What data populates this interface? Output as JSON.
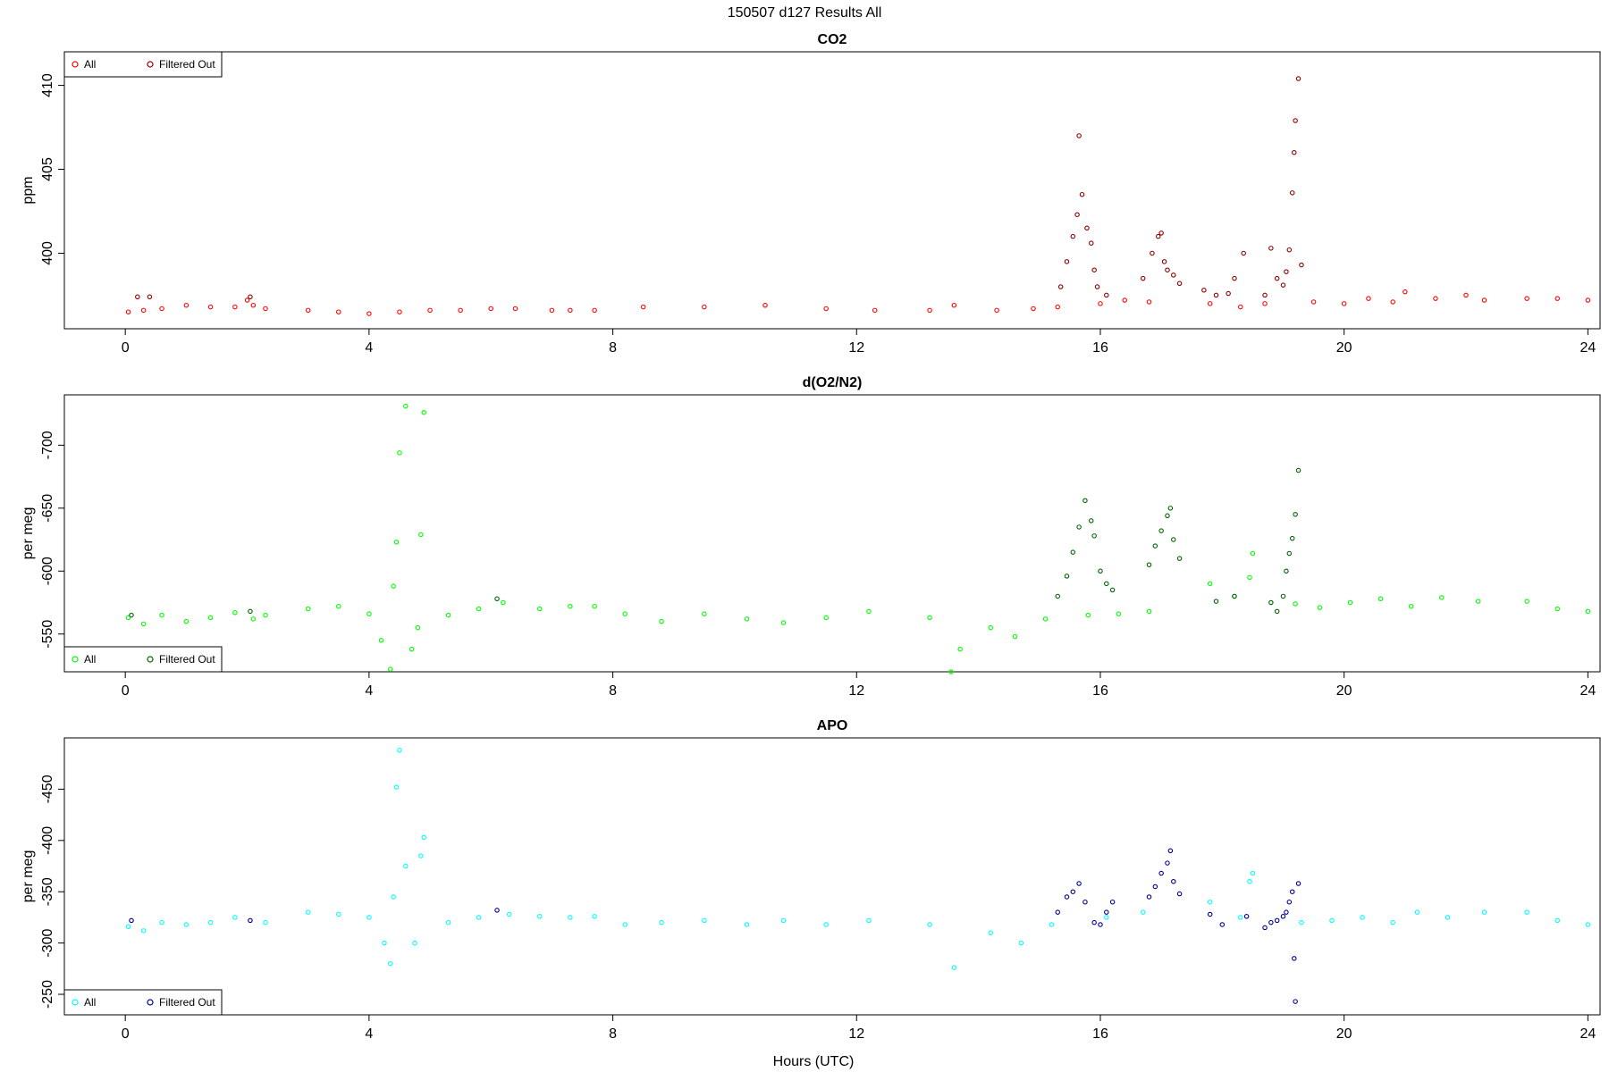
{
  "page_title": "150507   d127   Results All",
  "xlabel": "Hours (UTC)",
  "legend_labels": {
    "all": "All",
    "filtered": "Filtered Out"
  },
  "chart_data": [
    {
      "type": "scatter",
      "title": "CO2",
      "ylabel": "ppm",
      "xlim": [
        -1,
        24.2
      ],
      "ylim": [
        395.5,
        412
      ],
      "y_reversed": true,
      "x_ticks": [
        0,
        4,
        8,
        12,
        16,
        20,
        24
      ],
      "y_ticks": [
        400,
        405,
        410
      ],
      "legend_placement": "top-left",
      "colors": {
        "all": "#ff0000",
        "filtered": "#8b0000"
      },
      "series": [
        {
          "name": "All",
          "x": [
            0.05,
            0.3,
            0.6,
            1.0,
            1.4,
            1.8,
            2.0,
            2.1,
            2.3,
            3.0,
            3.5,
            4.0,
            4.5,
            5.0,
            5.5,
            6.0,
            6.4,
            7.0,
            7.3,
            7.7,
            8.5,
            9.5,
            10.5,
            11.5,
            12.3,
            13.2,
            13.6,
            14.3,
            14.9,
            15.3,
            16.0,
            16.4,
            16.8,
            17.8,
            18.3,
            18.7,
            19.5,
            20.0,
            20.4,
            20.8,
            21.0,
            21.5,
            22.0,
            22.3,
            23.0,
            23.5,
            24.0
          ],
          "y": [
            396.5,
            396.6,
            396.7,
            396.9,
            396.8,
            396.8,
            397.2,
            396.9,
            396.7,
            396.6,
            396.5,
            396.4,
            396.5,
            396.6,
            396.6,
            396.7,
            396.7,
            396.6,
            396.6,
            396.6,
            396.8,
            396.8,
            396.9,
            396.7,
            396.6,
            396.6,
            396.9,
            396.6,
            396.7,
            396.8,
            397.0,
            397.2,
            397.1,
            397.0,
            396.8,
            397.0,
            397.1,
            397.0,
            397.3,
            397.1,
            397.7,
            397.3,
            397.5,
            397.2,
            397.3,
            397.3,
            397.2
          ]
        },
        {
          "name": "Filtered Out",
          "x": [
            0.2,
            0.4,
            2.05,
            15.35,
            15.45,
            15.55,
            15.62,
            15.65,
            15.7,
            15.78,
            15.85,
            15.9,
            15.95,
            16.1,
            16.7,
            16.85,
            16.95,
            17.0,
            17.05,
            17.1,
            17.2,
            17.3,
            17.7,
            17.9,
            18.1,
            18.2,
            18.35,
            18.7,
            18.8,
            18.9,
            19.0,
            19.05,
            19.1,
            19.15,
            19.18,
            19.2,
            19.25,
            19.3
          ],
          "y": [
            397.4,
            397.4,
            397.4,
            398.0,
            399.5,
            401.0,
            402.3,
            407.0,
            403.5,
            401.5,
            400.6,
            399.0,
            398.0,
            397.5,
            398.5,
            400.0,
            401.0,
            401.2,
            399.5,
            399.0,
            398.7,
            398.2,
            397.8,
            397.5,
            397.6,
            398.5,
            400.0,
            397.5,
            400.3,
            398.5,
            398.1,
            398.9,
            400.2,
            403.6,
            406.0,
            407.9,
            410.4,
            399.3
          ]
        }
      ]
    },
    {
      "type": "scatter",
      "title": "d(O2/N2)",
      "ylabel": "per meg",
      "xlim": [
        -1,
        24.2
      ],
      "ylim": [
        -520,
        -740
      ],
      "y_reversed": false,
      "x_ticks": [
        0,
        4,
        8,
        12,
        16,
        20,
        24
      ],
      "y_ticks": [
        -550,
        -600,
        -650,
        -700
      ],
      "legend_placement": "bottom-left",
      "colors": {
        "all": "#00ff00",
        "filtered": "#006400"
      },
      "series": [
        {
          "name": "All",
          "x": [
            0.05,
            0.3,
            0.6,
            1.0,
            1.4,
            1.8,
            2.1,
            2.3,
            3.0,
            3.5,
            4.0,
            4.2,
            4.35,
            4.4,
            4.45,
            4.5,
            4.6,
            4.7,
            4.8,
            4.85,
            4.9,
            5.3,
            5.8,
            6.2,
            6.8,
            7.3,
            7.7,
            8.2,
            8.8,
            9.5,
            10.2,
            10.8,
            11.5,
            12.2,
            13.2,
            13.55,
            13.7,
            14.2,
            14.6,
            15.1,
            15.8,
            16.3,
            16.8,
            17.8,
            18.2,
            18.45,
            18.5,
            19.2,
            19.6,
            20.1,
            20.6,
            21.1,
            21.6,
            22.2,
            23.0,
            23.5,
            24.0
          ],
          "y": [
            -563,
            -558,
            -565,
            -560,
            -563,
            -567,
            -562,
            -565,
            -570,
            -572,
            -566,
            -545,
            -522,
            -588,
            -623,
            -694,
            -731,
            -538,
            -555,
            -629,
            -726,
            -565,
            -570,
            -575,
            -570,
            -572,
            -572,
            -566,
            -560,
            -566,
            -562,
            -559,
            -563,
            -568,
            -563,
            -520,
            -538,
            -555,
            -548,
            -562,
            -565,
            -566,
            -568,
            -590,
            -580,
            -595,
            -614,
            -574,
            -571,
            -575,
            -578,
            -572,
            -579,
            -576,
            -576,
            -570,
            -568
          ]
        },
        {
          "name": "Filtered Out",
          "x": [
            0.1,
            2.05,
            6.1,
            15.3,
            15.45,
            15.55,
            15.65,
            15.75,
            15.85,
            15.9,
            16.0,
            16.1,
            16.2,
            16.8,
            16.9,
            17.0,
            17.1,
            17.15,
            17.2,
            17.3,
            17.9,
            18.2,
            18.8,
            18.9,
            19.0,
            19.05,
            19.1,
            19.15,
            19.2,
            19.25
          ],
          "y": [
            -565,
            -568,
            -578,
            -580,
            -596,
            -615,
            -635,
            -656,
            -640,
            -628,
            -600,
            -590,
            -585,
            -605,
            -620,
            -632,
            -644,
            -650,
            -625,
            -610,
            -576,
            -580,
            -575,
            -568,
            -580,
            -600,
            -614,
            -626,
            -645,
            -680
          ]
        }
      ]
    },
    {
      "type": "scatter",
      "title": "APO",
      "ylabel": "per meg",
      "xlim": [
        -1,
        24.2
      ],
      "ylim": [
        -230,
        -500
      ],
      "y_reversed": false,
      "x_ticks": [
        0,
        4,
        8,
        12,
        16,
        20,
        24
      ],
      "y_ticks": [
        -250,
        -300,
        -350,
        -400,
        -450
      ],
      "legend_placement": "bottom-left",
      "colors": {
        "all": "#00ffff",
        "filtered": "#00008b"
      },
      "series": [
        {
          "name": "All",
          "x": [
            0.05,
            0.3,
            0.6,
            1.0,
            1.4,
            1.8,
            2.3,
            3.0,
            3.5,
            4.0,
            4.25,
            4.35,
            4.4,
            4.45,
            4.5,
            4.6,
            4.75,
            4.85,
            4.9,
            5.3,
            5.8,
            6.3,
            6.8,
            7.3,
            7.7,
            8.2,
            8.8,
            9.5,
            10.2,
            10.8,
            11.5,
            12.2,
            13.2,
            13.6,
            14.2,
            14.7,
            15.2,
            16.1,
            16.7,
            17.8,
            18.3,
            18.45,
            18.5,
            19.3,
            19.8,
            20.3,
            20.8,
            21.2,
            21.7,
            22.3,
            23.0,
            23.5,
            24.0
          ],
          "y": [
            -316,
            -312,
            -320,
            -318,
            -320,
            -325,
            -320,
            -330,
            -328,
            -325,
            -300,
            -280,
            -345,
            -452,
            -488,
            -375,
            -300,
            -385,
            -403,
            -320,
            -325,
            -328,
            -326,
            -325,
            -326,
            -318,
            -320,
            -322,
            -318,
            -322,
            -318,
            -322,
            -318,
            -276,
            -310,
            -300,
            -318,
            -325,
            -330,
            -340,
            -325,
            -360,
            -368,
            -320,
            -322,
            -325,
            -320,
            -330,
            -325,
            -330,
            -330,
            -322,
            -318
          ]
        },
        {
          "name": "Filtered Out",
          "x": [
            0.1,
            2.05,
            6.1,
            15.3,
            15.45,
            15.55,
            15.65,
            15.75,
            15.9,
            16.0,
            16.1,
            16.2,
            16.8,
            16.9,
            17.0,
            17.1,
            17.15,
            17.2,
            17.3,
            17.8,
            18.0,
            18.4,
            18.7,
            18.8,
            18.9,
            19.0,
            19.05,
            19.1,
            19.15,
            19.18,
            19.2,
            19.25
          ],
          "y": [
            -322,
            -322,
            -332,
            -330,
            -345,
            -350,
            -358,
            -340,
            -320,
            -318,
            -330,
            -340,
            -345,
            -355,
            -368,
            -378,
            -390,
            -360,
            -348,
            -328,
            -318,
            -326,
            -315,
            -320,
            -322,
            -326,
            -330,
            -340,
            -350,
            -285,
            -243,
            -358
          ]
        }
      ]
    }
  ]
}
